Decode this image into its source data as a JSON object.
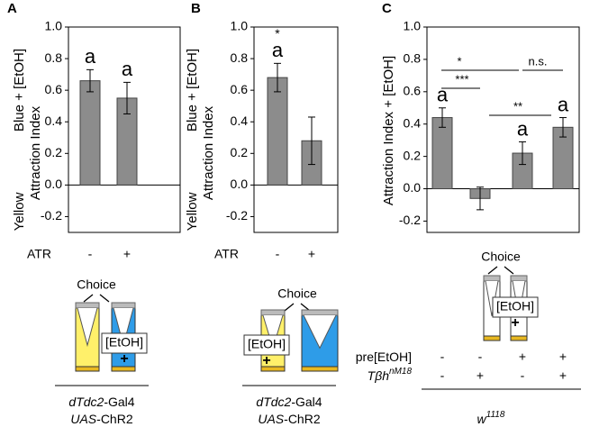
{
  "chart_data": [
    {
      "type": "bar",
      "panel": "A",
      "ylabel": [
        "Blue + [EtOH]",
        "Yellow",
        "Attraction Index"
      ],
      "row_label": "ATR",
      "categories": [
        "-",
        "+"
      ],
      "values": [
        0.66,
        0.55
      ],
      "errors": [
        0.07,
        0.1
      ],
      "annotations": [
        "a",
        "a"
      ],
      "color": "#8c8c8c",
      "ylim": [
        -0.3,
        1.0
      ],
      "yticks": [
        {
          "value": 1.0,
          "label": "1.0"
        },
        0.8,
        0.6,
        0.4,
        0.2,
        {
          "value": 0,
          "label": "0.0"
        },
        -0.2
      ],
      "diagram": {
        "choice": "Choice",
        "label": "[EtOH]",
        "plus": "+"
      },
      "genotype": [
        [
          "dTdc2",
          "-Gal4"
        ],
        [
          "UAS",
          "-ChR2"
        ]
      ]
    },
    {
      "type": "bar",
      "panel": "B",
      "ylabel": [
        "Blue + [EtOH]",
        "Yellow",
        "Attraction Index"
      ],
      "row_label": "ATR",
      "categories": [
        "-",
        "+"
      ],
      "values": [
        0.68,
        0.28
      ],
      "errors": [
        0.09,
        0.15
      ],
      "annotations": [
        "a",
        null
      ],
      "significance": [
        "*",
        null
      ],
      "color": "#8c8c8c",
      "ylim": [
        -0.3,
        1.0
      ],
      "yticks": [
        {
          "value": 1.0,
          "label": "1.0"
        },
        0.8,
        0.6,
        0.4,
        0.2,
        {
          "value": 0,
          "label": "0.0"
        },
        -0.2
      ],
      "diagram": {
        "choice": "Choice",
        "label": "[EtOH]",
        "plus": "+"
      },
      "genotype": [
        [
          "dTdc2",
          "-Gal4"
        ],
        [
          "UAS",
          "-ChR2"
        ]
      ]
    },
    {
      "type": "bar",
      "panel": "C",
      "ylabel": [
        "Attraction Index + [EtOH]"
      ],
      "categories": [
        null,
        null,
        null,
        null
      ],
      "values": [
        0.44,
        -0.06,
        0.22,
        0.38
      ],
      "errors": [
        0.06,
        0.07,
        0.07,
        0.06
      ],
      "annotations": [
        "a",
        null,
        "a",
        "a"
      ],
      "comparisons": [
        "*",
        "n.s.",
        "***",
        "**"
      ],
      "color": "#8c8c8c",
      "ylim": [
        -0.27,
        1.0
      ],
      "yticks": [
        {
          "value": 1.0,
          "label": "1.0"
        },
        0.8,
        0.6,
        0.4,
        0.2,
        {
          "value": 0,
          "label": "0.0"
        },
        -0.2
      ],
      "diagram": {
        "choice": "Choice",
        "label": "[EtOH]",
        "plus": "+"
      },
      "table": {
        "rows": [
          {
            "label": [
              "pre[EtOH]"
            ],
            "cells": [
              "-",
              "-",
              "+",
              "+"
            ]
          },
          {
            "label": [
              "Tβh",
              "nM18"
            ],
            "cells": [
              "-",
              "+",
              "-",
              "+"
            ]
          }
        ],
        "footer": [
          "w",
          "1118"
        ]
      }
    }
  ]
}
